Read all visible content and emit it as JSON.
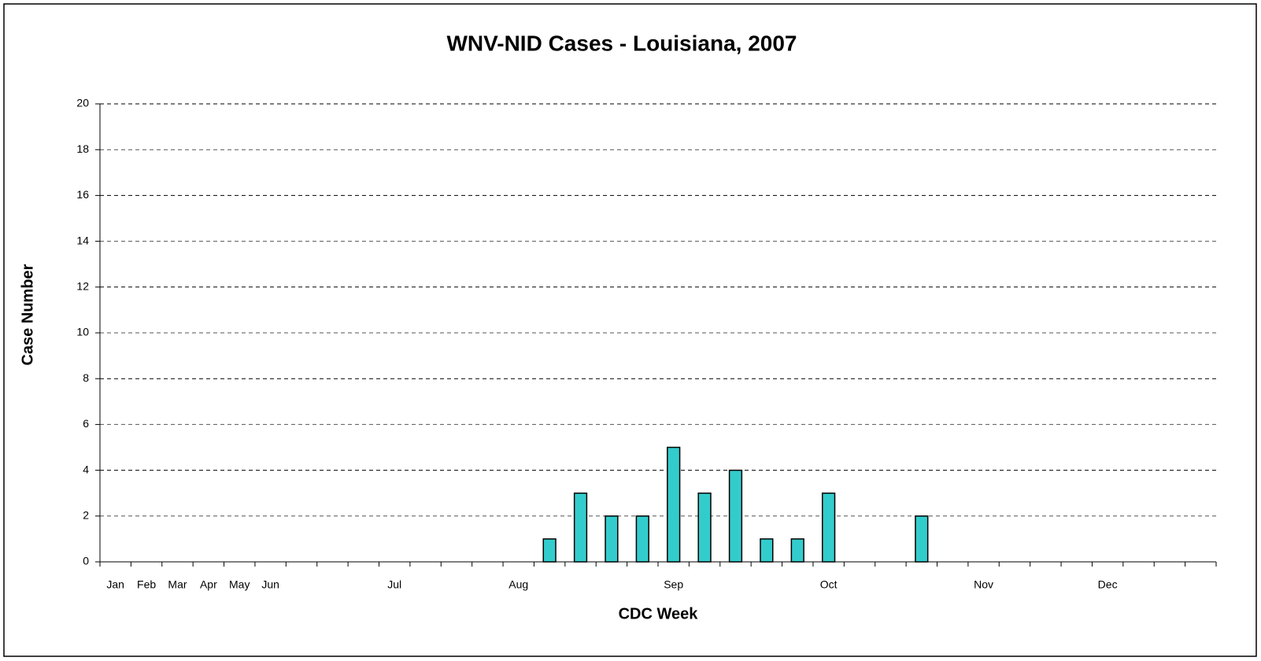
{
  "chart_data": {
    "type": "bar",
    "title": "WNV-NID Cases - Louisiana, 2007",
    "x_label": "CDC Week",
    "y_label": "Case Number",
    "categories": [
      "Jan",
      "Feb",
      "Mar",
      "Apr",
      "May",
      "Jun",
      null,
      null,
      null,
      "Jul",
      null,
      null,
      null,
      "Aug",
      null,
      null,
      null,
      null,
      "Sep",
      null,
      null,
      null,
      null,
      "Oct",
      null,
      null,
      null,
      null,
      "Nov",
      null,
      null,
      null,
      "Dec",
      null,
      null,
      null
    ],
    "values": [
      0,
      0,
      0,
      0,
      0,
      0,
      0,
      0,
      0,
      0,
      0,
      0,
      0,
      0,
      1,
      3,
      2,
      2,
      5,
      3,
      4,
      1,
      1,
      3,
      0,
      0,
      2,
      0,
      0,
      0,
      0,
      0,
      0,
      0,
      0,
      0
    ],
    "color": "#33cccc",
    "ylim": [
      0,
      20
    ],
    "yticks": [
      0,
      2,
      4,
      6,
      8,
      10,
      12,
      14,
      16,
      18,
      20
    ],
    "grid": true
  }
}
